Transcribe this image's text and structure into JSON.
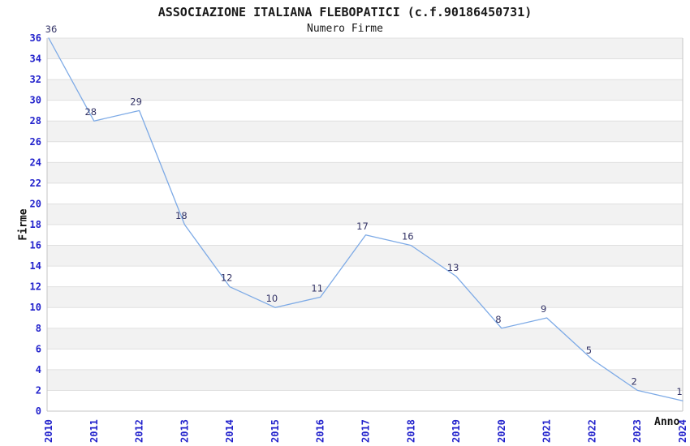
{
  "chart_data": {
    "type": "line",
    "title": "ASSOCIAZIONE ITALIANA FLEBOPATICI (c.f.90186450731)",
    "subtitle": "Numero Firme",
    "xlabel": "Anno",
    "ylabel": "Firme",
    "categories": [
      "2010",
      "2011",
      "2012",
      "2013",
      "2014",
      "2015",
      "2016",
      "2017",
      "2018",
      "2019",
      "2020",
      "2021",
      "2022",
      "2023",
      "2024"
    ],
    "series": [
      {
        "name": "Numero Firme",
        "values": [
          36,
          28,
          29,
          18,
          12,
          10,
          11,
          17,
          16,
          13,
          8,
          9,
          5,
          2,
          1
        ]
      }
    ],
    "data_labels_visible": true,
    "ylim": [
      0,
      36
    ],
    "ytick_step": 2,
    "grid": true,
    "band_fill": true,
    "legend_position": "none",
    "colors": {
      "line": "#7daae6",
      "tick_label": "#2222cc",
      "data_label": "#333366",
      "band": "#f2f2f2",
      "gridline": "#e0e0e0",
      "spine": "#c6c6c6",
      "text": "#111111",
      "background": "#ffffff"
    }
  }
}
